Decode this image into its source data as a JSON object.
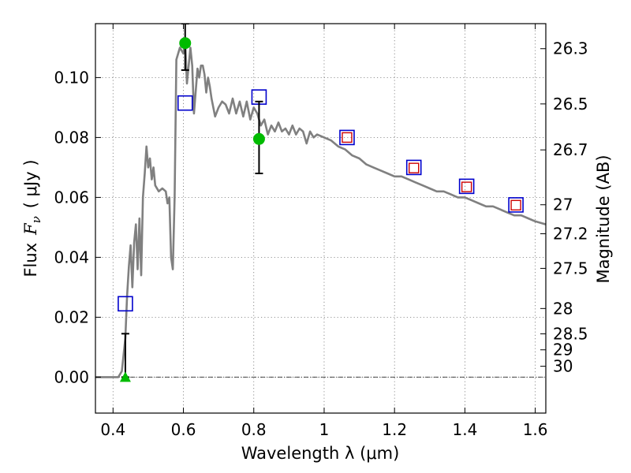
{
  "chart_data": {
    "type": "line",
    "xlabel": "Wavelength  λ (μm)",
    "ylabel_prefix": "Flux",
    "ylabel_var": "F",
    "ylabel_sub": "ν",
    "ylabel_suffix": "( μJy )",
    "y2label": "Magnitude (AB)",
    "xlim": [
      0.35,
      1.63
    ],
    "ylim": [
      -0.012,
      0.118
    ],
    "grid": true,
    "x_ticks": [
      {
        "value": 0.4,
        "label": "0.4"
      },
      {
        "value": 0.6,
        "label": "0.6"
      },
      {
        "value": 0.8,
        "label": "0.8"
      },
      {
        "value": 1.0,
        "label": "1"
      },
      {
        "value": 1.2,
        "label": "1.2"
      },
      {
        "value": 1.4,
        "label": "1.4"
      },
      {
        "value": 1.6,
        "label": "1.6"
      }
    ],
    "y_ticks": [
      {
        "value": 0.0,
        "label": "0.00"
      },
      {
        "value": 0.02,
        "label": "0.02"
      },
      {
        "value": 0.04,
        "label": "0.04"
      },
      {
        "value": 0.06,
        "label": "0.06"
      },
      {
        "value": 0.08,
        "label": "0.08"
      },
      {
        "value": 0.1,
        "label": "0.10"
      }
    ],
    "y2_ticks": [
      {
        "label": "26.3",
        "mag": 26.3
      },
      {
        "label": "26.5",
        "mag": 26.5
      },
      {
        "label": "26.7",
        "mag": 26.7
      },
      {
        "label": "27",
        "mag": 27
      },
      {
        "label": "27.2",
        "mag": 27.2
      },
      {
        "label": "27.5",
        "mag": 27.5
      },
      {
        "label": "28",
        "mag": 28
      },
      {
        "label": "28.5",
        "mag": 28.5
      },
      {
        "label": "29",
        "mag": 29
      },
      {
        "label": "30",
        "mag": 30
      }
    ],
    "sed_model": {
      "name": "model spectrum",
      "color": "#808080",
      "x": [
        0.35,
        0.4,
        0.415,
        0.425,
        0.435,
        0.44,
        0.445,
        0.45,
        0.455,
        0.46,
        0.465,
        0.47,
        0.475,
        0.48,
        0.485,
        0.49,
        0.495,
        0.5,
        0.505,
        0.51,
        0.515,
        0.52,
        0.53,
        0.54,
        0.55,
        0.555,
        0.56,
        0.565,
        0.57,
        0.575,
        0.58,
        0.59,
        0.6,
        0.605,
        0.61,
        0.62,
        0.625,
        0.63,
        0.64,
        0.645,
        0.65,
        0.655,
        0.66,
        0.665,
        0.67,
        0.675,
        0.68,
        0.69,
        0.7,
        0.71,
        0.72,
        0.73,
        0.74,
        0.75,
        0.76,
        0.77,
        0.78,
        0.79,
        0.8,
        0.81,
        0.82,
        0.83,
        0.84,
        0.85,
        0.86,
        0.87,
        0.88,
        0.89,
        0.9,
        0.91,
        0.92,
        0.93,
        0.94,
        0.95,
        0.96,
        0.97,
        0.98,
        1.0,
        1.02,
        1.04,
        1.06,
        1.08,
        1.1,
        1.12,
        1.14,
        1.16,
        1.18,
        1.2,
        1.22,
        1.24,
        1.26,
        1.28,
        1.3,
        1.32,
        1.34,
        1.36,
        1.38,
        1.4,
        1.42,
        1.44,
        1.46,
        1.48,
        1.5,
        1.52,
        1.54,
        1.56,
        1.58,
        1.6,
        1.63
      ],
      "y": [
        0.0,
        0.0,
        0.0,
        0.002,
        0.013,
        0.027,
        0.037,
        0.044,
        0.03,
        0.045,
        0.051,
        0.036,
        0.053,
        0.034,
        0.06,
        0.068,
        0.077,
        0.07,
        0.073,
        0.066,
        0.07,
        0.064,
        0.062,
        0.063,
        0.062,
        0.058,
        0.06,
        0.04,
        0.036,
        0.06,
        0.106,
        0.11,
        0.108,
        0.112,
        0.098,
        0.11,
        0.104,
        0.088,
        0.103,
        0.1,
        0.104,
        0.104,
        0.101,
        0.095,
        0.1,
        0.097,
        0.093,
        0.087,
        0.09,
        0.092,
        0.091,
        0.088,
        0.093,
        0.088,
        0.092,
        0.087,
        0.092,
        0.086,
        0.09,
        0.088,
        0.084,
        0.086,
        0.081,
        0.084,
        0.082,
        0.085,
        0.082,
        0.083,
        0.081,
        0.084,
        0.081,
        0.083,
        0.082,
        0.078,
        0.082,
        0.08,
        0.081,
        0.08,
        0.079,
        0.077,
        0.076,
        0.074,
        0.073,
        0.071,
        0.07,
        0.069,
        0.068,
        0.067,
        0.067,
        0.066,
        0.065,
        0.064,
        0.063,
        0.062,
        0.062,
        0.061,
        0.06,
        0.06,
        0.059,
        0.058,
        0.057,
        0.057,
        0.056,
        0.055,
        0.054,
        0.054,
        0.053,
        0.052,
        0.051
      ]
    },
    "model_photometry": {
      "name": "model photometry",
      "color": "#0000cc",
      "x": [
        0.435,
        0.605,
        0.815,
        1.065,
        1.255,
        1.405,
        1.545
      ],
      "y": [
        0.0245,
        0.0915,
        0.0935,
        0.08,
        0.07,
        0.0637,
        0.0575
      ]
    },
    "observed_detections": {
      "name": "observed flux",
      "color": "#00bb00",
      "x": [
        0.605,
        0.815
      ],
      "y": [
        0.1115,
        0.0795
      ],
      "err_low": [
        0.1025,
        0.068
      ],
      "err_high": [
        0.118,
        0.092
      ]
    },
    "observed_upper": {
      "name": "non-detection",
      "color": "#00bb00",
      "x": [
        0.435
      ],
      "y": [
        0.0
      ],
      "err_low": [
        0.0
      ],
      "err_high": [
        0.0145
      ]
    },
    "observed_nir": {
      "name": "observed NIR flux",
      "color": "#cc0000",
      "x": [
        1.065,
        1.255,
        1.405,
        1.545
      ],
      "y": [
        0.08,
        0.0698,
        0.0635,
        0.0574
      ]
    }
  }
}
